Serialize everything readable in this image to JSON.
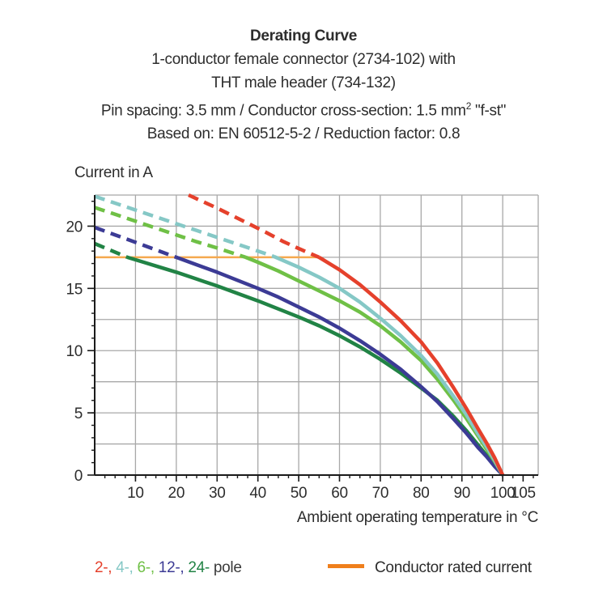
{
  "header": {
    "title": "Derating Curve",
    "subtitle_lines": [
      "1-conductor female connector (2734-102) with",
      "THT male header (734-132)"
    ],
    "pin_line": {
      "pre": "Pin spacing: 3.5 mm / Conductor cross-section: 1.5 mm",
      "sup": "2",
      "post": " \"f-st\""
    },
    "based_line": "Based on: EN 60512-5-2 / Reduction factor: 0.8"
  },
  "chart_data": {
    "type": "line",
    "title": "Derating Curve",
    "ylabel": "Current in A",
    "xlabel": "Ambient operating temperature in °C",
    "xlim": [
      0,
      108.7
    ],
    "ylim": [
      0,
      22.5
    ],
    "x_major_ticks": [
      10,
      20,
      30,
      40,
      50,
      60,
      70,
      80,
      90,
      100,
      105
    ],
    "x_grid": [
      10,
      20,
      30,
      40,
      50,
      60,
      70,
      80,
      90,
      100
    ],
    "x_minor_step": 2.5,
    "y_major_ticks": [
      0,
      5,
      10,
      15,
      20
    ],
    "y_grid_step": 2.5,
    "y_minor_step": 1,
    "grid_color": "#a8a8a8",
    "axis_color": "#1a1a1a",
    "legend_position": "bottom",
    "rated_line": {
      "label": "Conductor rated current",
      "y": 17.5,
      "x_start": 0,
      "x_end": 55,
      "color": "#F5A94F"
    },
    "series": [
      {
        "name": "2-pole",
        "color": "#E5412C",
        "dash_until": 55,
        "points": [
          [
            23,
            22.5
          ],
          [
            26,
            22.05
          ],
          [
            30,
            21.45
          ],
          [
            34,
            20.8
          ],
          [
            38,
            20.15
          ],
          [
            42,
            19.5
          ],
          [
            46,
            18.8
          ],
          [
            50,
            18.2
          ],
          [
            55,
            17.5
          ],
          [
            60,
            16.5
          ],
          [
            65,
            15.3
          ],
          [
            70,
            13.9
          ],
          [
            75,
            12.4
          ],
          [
            80,
            10.7
          ],
          [
            84,
            9.0
          ],
          [
            88,
            7.0
          ],
          [
            91,
            5.4
          ],
          [
            94,
            3.7
          ],
          [
            96,
            2.6
          ],
          [
            98,
            1.4
          ],
          [
            99,
            0.7
          ],
          [
            100,
            0
          ]
        ]
      },
      {
        "name": "4-pole",
        "color": "#85C8C6",
        "dash_until": 44,
        "points": [
          [
            0,
            22.4
          ],
          [
            5,
            21.85
          ],
          [
            10,
            21.3
          ],
          [
            15,
            20.75
          ],
          [
            20,
            20.2
          ],
          [
            25,
            19.65
          ],
          [
            30,
            19.1
          ],
          [
            35,
            18.55
          ],
          [
            40,
            18.0
          ],
          [
            44,
            17.55
          ],
          [
            50,
            16.7
          ],
          [
            55,
            15.9
          ],
          [
            60,
            15.0
          ],
          [
            65,
            13.9
          ],
          [
            70,
            12.6
          ],
          [
            75,
            11.2
          ],
          [
            80,
            9.6
          ],
          [
            84,
            8.1
          ],
          [
            88,
            6.3
          ],
          [
            91,
            4.9
          ],
          [
            94,
            3.3
          ],
          [
            96,
            2.3
          ],
          [
            98,
            1.2
          ],
          [
            99,
            0.6
          ],
          [
            100,
            0
          ]
        ]
      },
      {
        "name": "6-pole",
        "color": "#6FC046",
        "dash_until": 37,
        "points": [
          [
            0,
            21.5
          ],
          [
            5,
            20.95
          ],
          [
            10,
            20.4
          ],
          [
            15,
            19.85
          ],
          [
            20,
            19.3
          ],
          [
            25,
            18.75
          ],
          [
            30,
            18.25
          ],
          [
            37,
            17.5
          ],
          [
            40,
            17.1
          ],
          [
            45,
            16.4
          ],
          [
            50,
            15.6
          ],
          [
            55,
            14.8
          ],
          [
            60,
            14.0
          ],
          [
            65,
            13.1
          ],
          [
            70,
            12.0
          ],
          [
            75,
            10.7
          ],
          [
            80,
            9.2
          ],
          [
            84,
            7.7
          ],
          [
            88,
            6.0
          ],
          [
            91,
            4.6
          ],
          [
            94,
            3.1
          ],
          [
            96,
            2.1
          ],
          [
            98,
            1.1
          ],
          [
            99,
            0.55
          ],
          [
            100,
            0
          ]
        ]
      },
      {
        "name": "12-pole",
        "color": "#3C3B95",
        "dash_until": 20,
        "points": [
          [
            0,
            19.9
          ],
          [
            5,
            19.3
          ],
          [
            10,
            18.7
          ],
          [
            15,
            18.1
          ],
          [
            20,
            17.5
          ],
          [
            25,
            16.9
          ],
          [
            30,
            16.3
          ],
          [
            35,
            15.65
          ],
          [
            40,
            15.0
          ],
          [
            45,
            14.3
          ],
          [
            50,
            13.5
          ],
          [
            55,
            12.7
          ],
          [
            60,
            11.8
          ],
          [
            65,
            10.8
          ],
          [
            70,
            9.7
          ],
          [
            75,
            8.5
          ],
          [
            80,
            7.1
          ],
          [
            84,
            5.9
          ],
          [
            88,
            4.5
          ],
          [
            91,
            3.4
          ],
          [
            94,
            2.2
          ],
          [
            96,
            1.5
          ],
          [
            98,
            0.7
          ],
          [
            100,
            0
          ]
        ]
      },
      {
        "name": "24-pole",
        "color": "#218345",
        "dash_until": 8,
        "points": [
          [
            0,
            18.6
          ],
          [
            4,
            18.05
          ],
          [
            8,
            17.5
          ],
          [
            12,
            17.1
          ],
          [
            16,
            16.7
          ],
          [
            20,
            16.3
          ],
          [
            25,
            15.75
          ],
          [
            30,
            15.2
          ],
          [
            35,
            14.6
          ],
          [
            40,
            14.0
          ],
          [
            45,
            13.35
          ],
          [
            50,
            12.7
          ],
          [
            55,
            12.0
          ],
          [
            60,
            11.2
          ],
          [
            65,
            10.3
          ],
          [
            70,
            9.3
          ],
          [
            75,
            8.2
          ],
          [
            80,
            7.0
          ],
          [
            84,
            6.0
          ],
          [
            88,
            4.7
          ],
          [
            91,
            3.6
          ],
          [
            94,
            2.4
          ],
          [
            96,
            1.6
          ],
          [
            98,
            0.8
          ],
          [
            100,
            0
          ]
        ]
      }
    ]
  },
  "legend": {
    "poles": [
      {
        "label": "2-",
        "color": "#E5412C"
      },
      {
        "label": "4-",
        "color": "#85C8C6"
      },
      {
        "label": "6-",
        "color": "#6FC046"
      },
      {
        "label": "12-",
        "color": "#3C3B95"
      },
      {
        "label": "24-",
        "color": "#218345"
      }
    ],
    "separator": ", ",
    "suffix": " pole",
    "rated": {
      "label": "Conductor rated current",
      "swatch_color": "#EF7F1C"
    }
  }
}
